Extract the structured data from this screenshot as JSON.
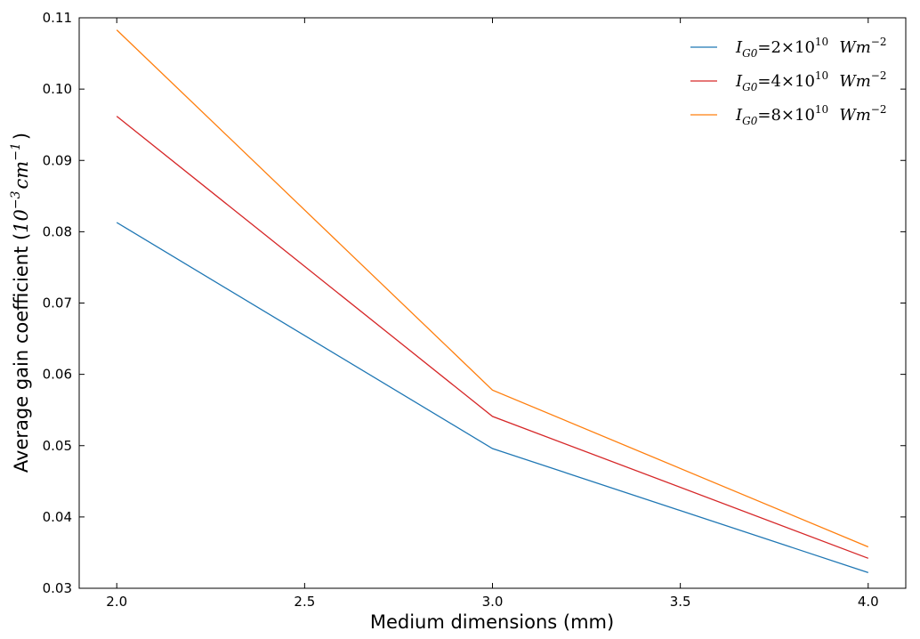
{
  "chart_data": {
    "type": "line",
    "xlabel": "Medium dimensions (mm)",
    "ylabel": {
      "prefix": "Average gain coefficient (",
      "math_base": "10",
      "math_exp1": "−3",
      "math_unit": "cm",
      "math_exp2": "−1",
      "suffix": ")"
    },
    "xlim": [
      1.9,
      4.1
    ],
    "ylim": [
      0.03,
      0.11
    ],
    "xticks": [
      2.0,
      2.5,
      3.0,
      3.5,
      4.0
    ],
    "xtick_labels": [
      "2.0",
      "2.5",
      "3.0",
      "3.5",
      "4.0"
    ],
    "yticks": [
      0.03,
      0.04,
      0.05,
      0.06,
      0.07,
      0.08,
      0.09,
      0.1,
      0.11
    ],
    "ytick_labels": [
      "0.03",
      "0.04",
      "0.05",
      "0.06",
      "0.07",
      "0.08",
      "0.09",
      "0.10",
      "0.11"
    ],
    "grid": false,
    "legend_position": "top-right",
    "x": [
      2.0,
      3.0,
      4.0
    ],
    "series": [
      {
        "name": "I_G0 = 2×10^10 Wm^-2",
        "legend": {
          "coef": "2",
          "exp": "10",
          "unit_exp": "−2"
        },
        "color": "#1f77b4",
        "values": [
          0.0813,
          0.0496,
          0.0322
        ]
      },
      {
        "name": "I_G0 = 4×10^10 Wm^-2",
        "legend": {
          "coef": "4",
          "exp": "10",
          "unit_exp": "−2"
        },
        "color": "#d62728",
        "values": [
          0.0962,
          0.0541,
          0.0342
        ]
      },
      {
        "name": "I_G0 = 8×10^10 Wm^-2",
        "legend": {
          "coef": "8",
          "exp": "10",
          "unit_exp": "−2"
        },
        "color": "#ff7f0e",
        "values": [
          0.1083,
          0.0578,
          0.0358
        ]
      }
    ]
  }
}
